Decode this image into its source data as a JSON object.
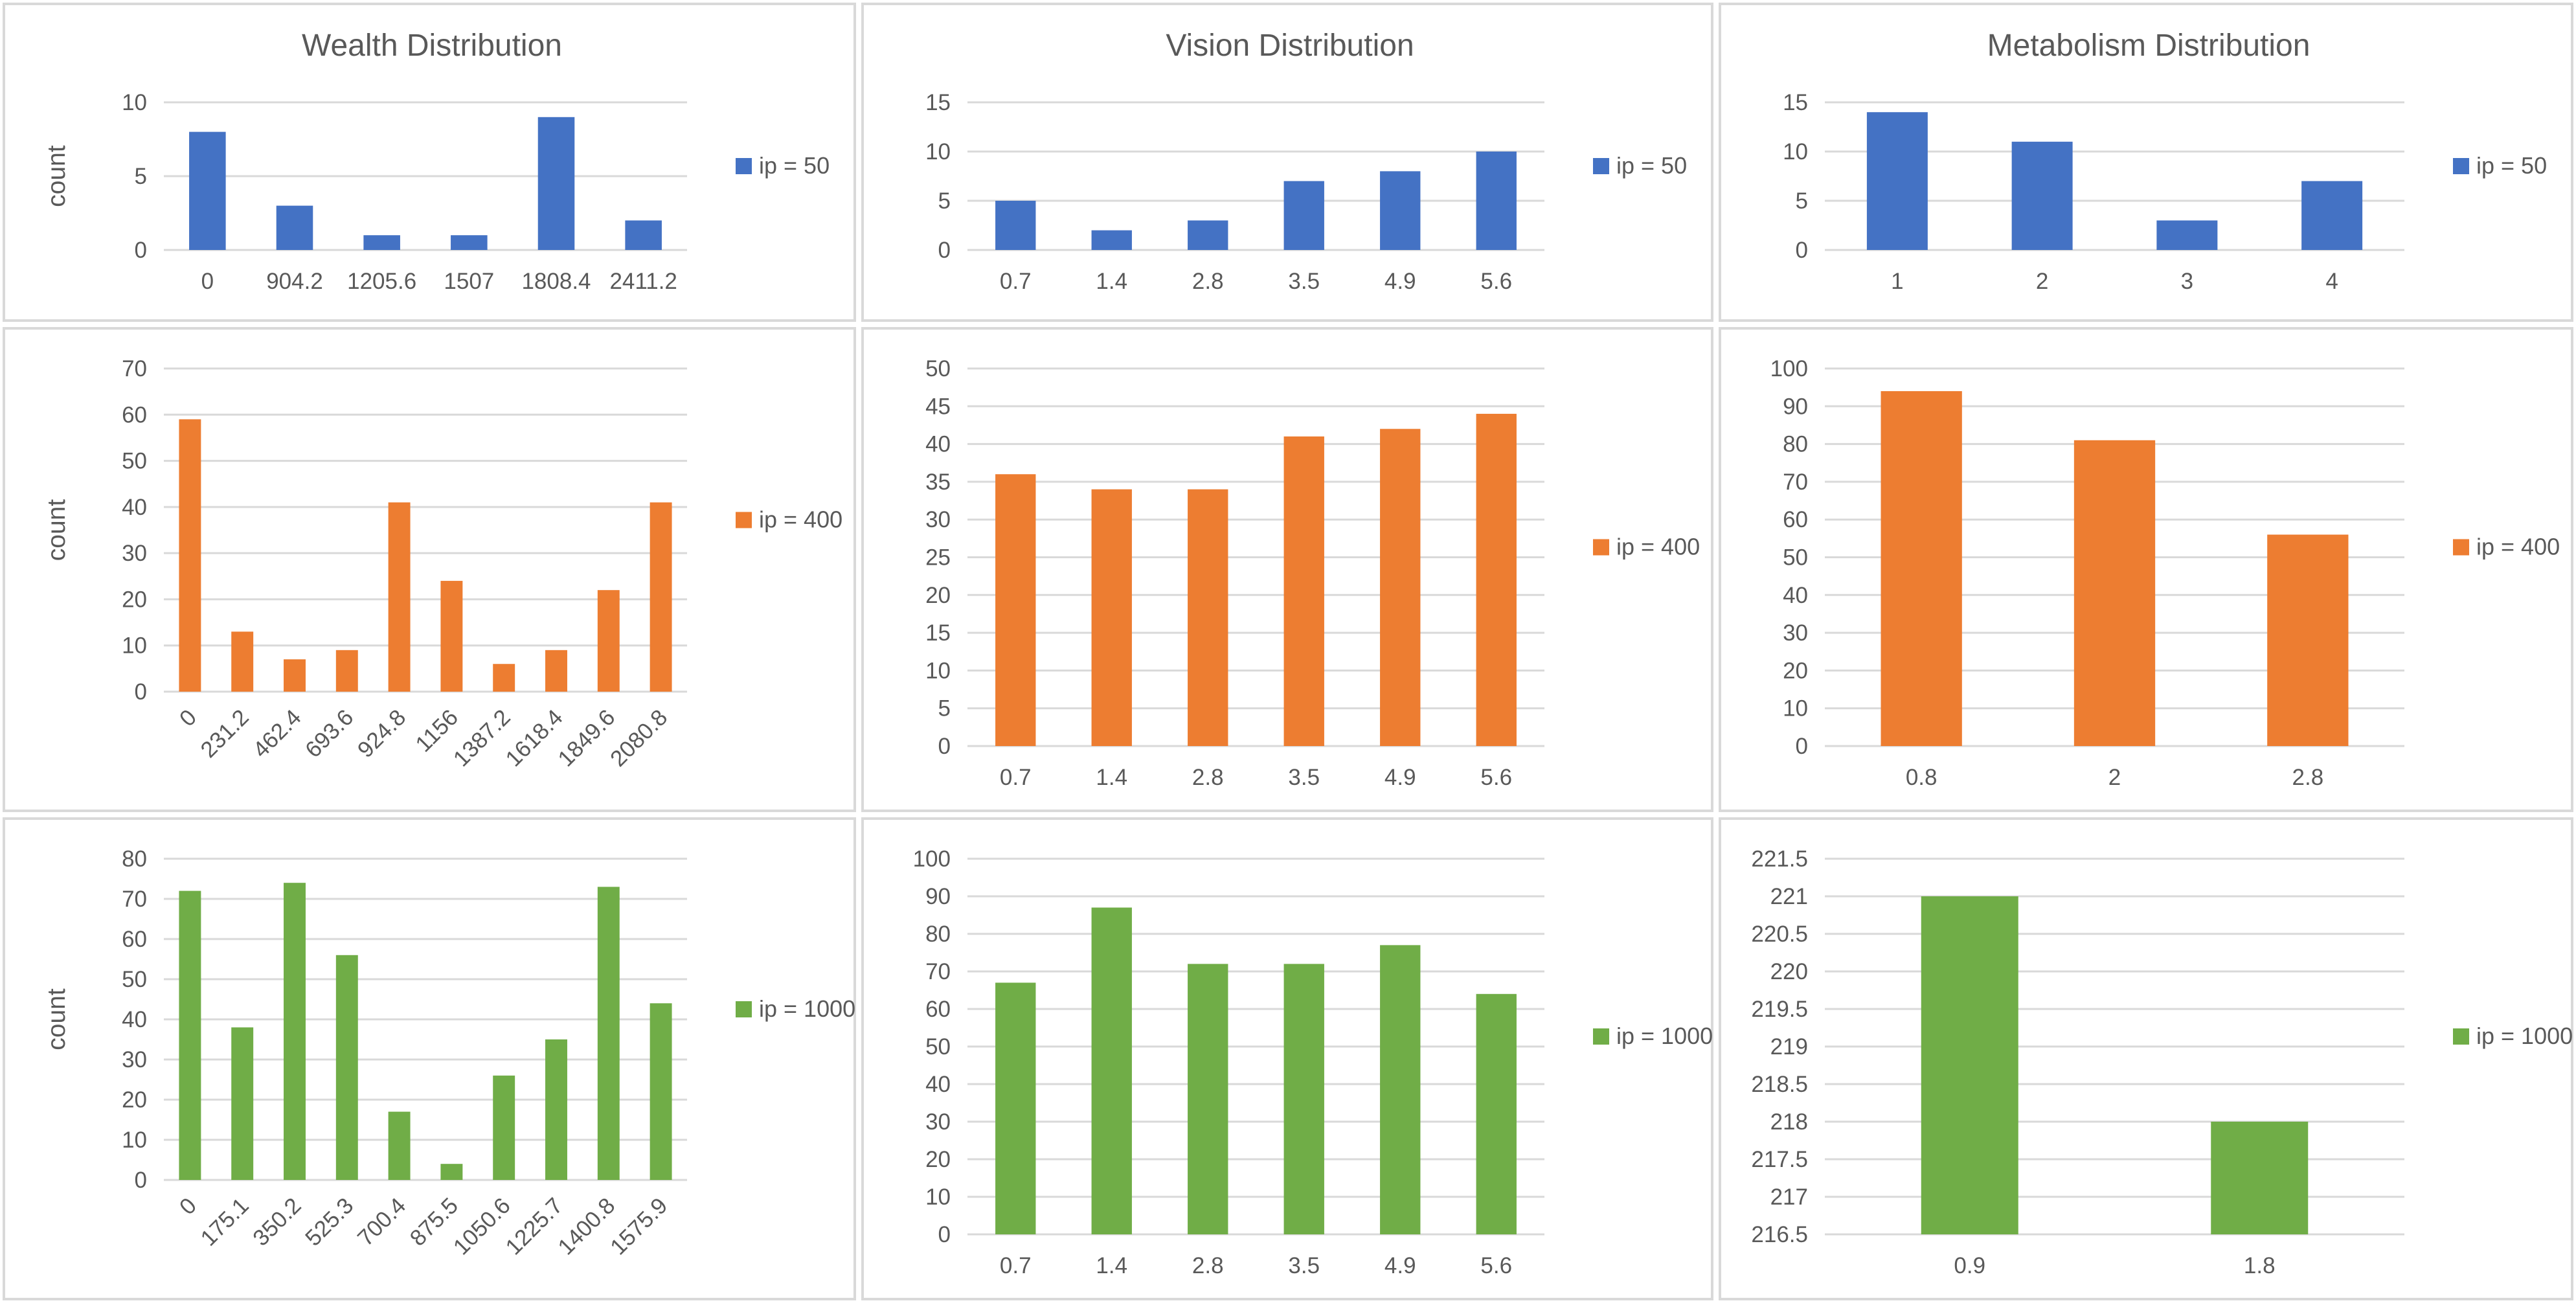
{
  "colors": {
    "ip50": "#4472c4",
    "ip400": "#ed7d31",
    "ip1000": "#70ad47",
    "gridline": "#d9d9d9",
    "text": "#595959"
  },
  "chart_data": [
    {
      "type": "bar",
      "row": 0,
      "col": 0,
      "title": "Wealth Distribution",
      "xlabel": "",
      "ylabel": "count",
      "categories": [
        "0",
        "904.2",
        "1205.6",
        "1507",
        "1808.4",
        "2411.2"
      ],
      "series": [
        {
          "name": "ip = 50",
          "values": [
            8,
            3,
            1,
            1,
            9,
            2
          ]
        }
      ],
      "ylim": [
        0,
        10
      ],
      "ystep": 5,
      "grid": true,
      "legend": "right",
      "rotate_labels": false
    },
    {
      "type": "bar",
      "row": 0,
      "col": 1,
      "title": "Vision Distribution",
      "xlabel": "",
      "ylabel": "",
      "categories": [
        "0.7",
        "1.4",
        "2.8",
        "3.5",
        "4.9",
        "5.6"
      ],
      "series": [
        {
          "name": "ip = 50",
          "values": [
            5,
            2,
            3,
            7,
            8,
            10
          ]
        }
      ],
      "ylim": [
        0,
        15
      ],
      "ystep": 5,
      "grid": true,
      "legend": "right",
      "rotate_labels": false
    },
    {
      "type": "bar",
      "row": 0,
      "col": 2,
      "title": "Metabolism Distribution",
      "xlabel": "",
      "ylabel": "",
      "categories": [
        "1",
        "2",
        "3",
        "4"
      ],
      "series": [
        {
          "name": "ip = 50",
          "values": [
            14,
            11,
            3,
            7
          ]
        }
      ],
      "ylim": [
        0,
        15
      ],
      "ystep": 5,
      "grid": true,
      "legend": "right",
      "rotate_labels": false
    },
    {
      "type": "bar",
      "row": 1,
      "col": 0,
      "title": "",
      "xlabel": "",
      "ylabel": "count",
      "categories": [
        "0",
        "231.2",
        "462.4",
        "693.6",
        "924.8",
        "1156",
        "1387.2",
        "1618.4",
        "1849.6",
        "2080.8"
      ],
      "series": [
        {
          "name": "ip = 400",
          "values": [
            59,
            13,
            7,
            9,
            41,
            24,
            6,
            9,
            22,
            41
          ]
        }
      ],
      "ylim": [
        0,
        70
      ],
      "ystep": 10,
      "grid": true,
      "legend": "right",
      "rotate_labels": true
    },
    {
      "type": "bar",
      "row": 1,
      "col": 1,
      "title": "",
      "xlabel": "",
      "ylabel": "",
      "categories": [
        "0.7",
        "1.4",
        "2.8",
        "3.5",
        "4.9",
        "5.6"
      ],
      "series": [
        {
          "name": "ip = 400",
          "values": [
            36,
            34,
            34,
            41,
            42,
            44
          ]
        }
      ],
      "ylim": [
        0,
        50
      ],
      "ystep": 5,
      "grid": true,
      "legend": "right",
      "rotate_labels": false
    },
    {
      "type": "bar",
      "row": 1,
      "col": 2,
      "title": "",
      "xlabel": "",
      "ylabel": "",
      "categories": [
        "0.8",
        "2",
        "2.8"
      ],
      "series": [
        {
          "name": "ip = 400",
          "values": [
            94,
            81,
            56
          ]
        }
      ],
      "ylim": [
        0,
        100
      ],
      "ystep": 10,
      "grid": true,
      "legend": "right",
      "rotate_labels": false
    },
    {
      "type": "bar",
      "row": 2,
      "col": 0,
      "title": "",
      "xlabel": "",
      "ylabel": "count",
      "categories": [
        "0",
        "175.1",
        "350.2",
        "525.3",
        "700.4",
        "875.5",
        "1050.6",
        "1225.7",
        "1400.8",
        "1575.9"
      ],
      "series": [
        {
          "name": "ip = 1000",
          "values": [
            72,
            38,
            74,
            56,
            17,
            4,
            26,
            35,
            73,
            44
          ]
        }
      ],
      "ylim": [
        0,
        80
      ],
      "ystep": 10,
      "grid": true,
      "legend": "right",
      "rotate_labels": true
    },
    {
      "type": "bar",
      "row": 2,
      "col": 1,
      "title": "",
      "xlabel": "",
      "ylabel": "",
      "categories": [
        "0.7",
        "1.4",
        "2.8",
        "3.5",
        "4.9",
        "5.6"
      ],
      "series": [
        {
          "name": "ip = 1000",
          "values": [
            67,
            87,
            72,
            72,
            77,
            64
          ]
        }
      ],
      "ylim": [
        0,
        100
      ],
      "ystep": 10,
      "grid": true,
      "legend": "right",
      "rotate_labels": false
    },
    {
      "type": "bar",
      "row": 2,
      "col": 2,
      "title": "",
      "xlabel": "",
      "ylabel": "",
      "categories": [
        "0.9",
        "1.8"
      ],
      "series": [
        {
          "name": "ip = 1000",
          "values": [
            221,
            218
          ]
        }
      ],
      "ylim": [
        216.5,
        221.5
      ],
      "ystep": 0.5,
      "grid": true,
      "legend": "right",
      "rotate_labels": false
    }
  ]
}
